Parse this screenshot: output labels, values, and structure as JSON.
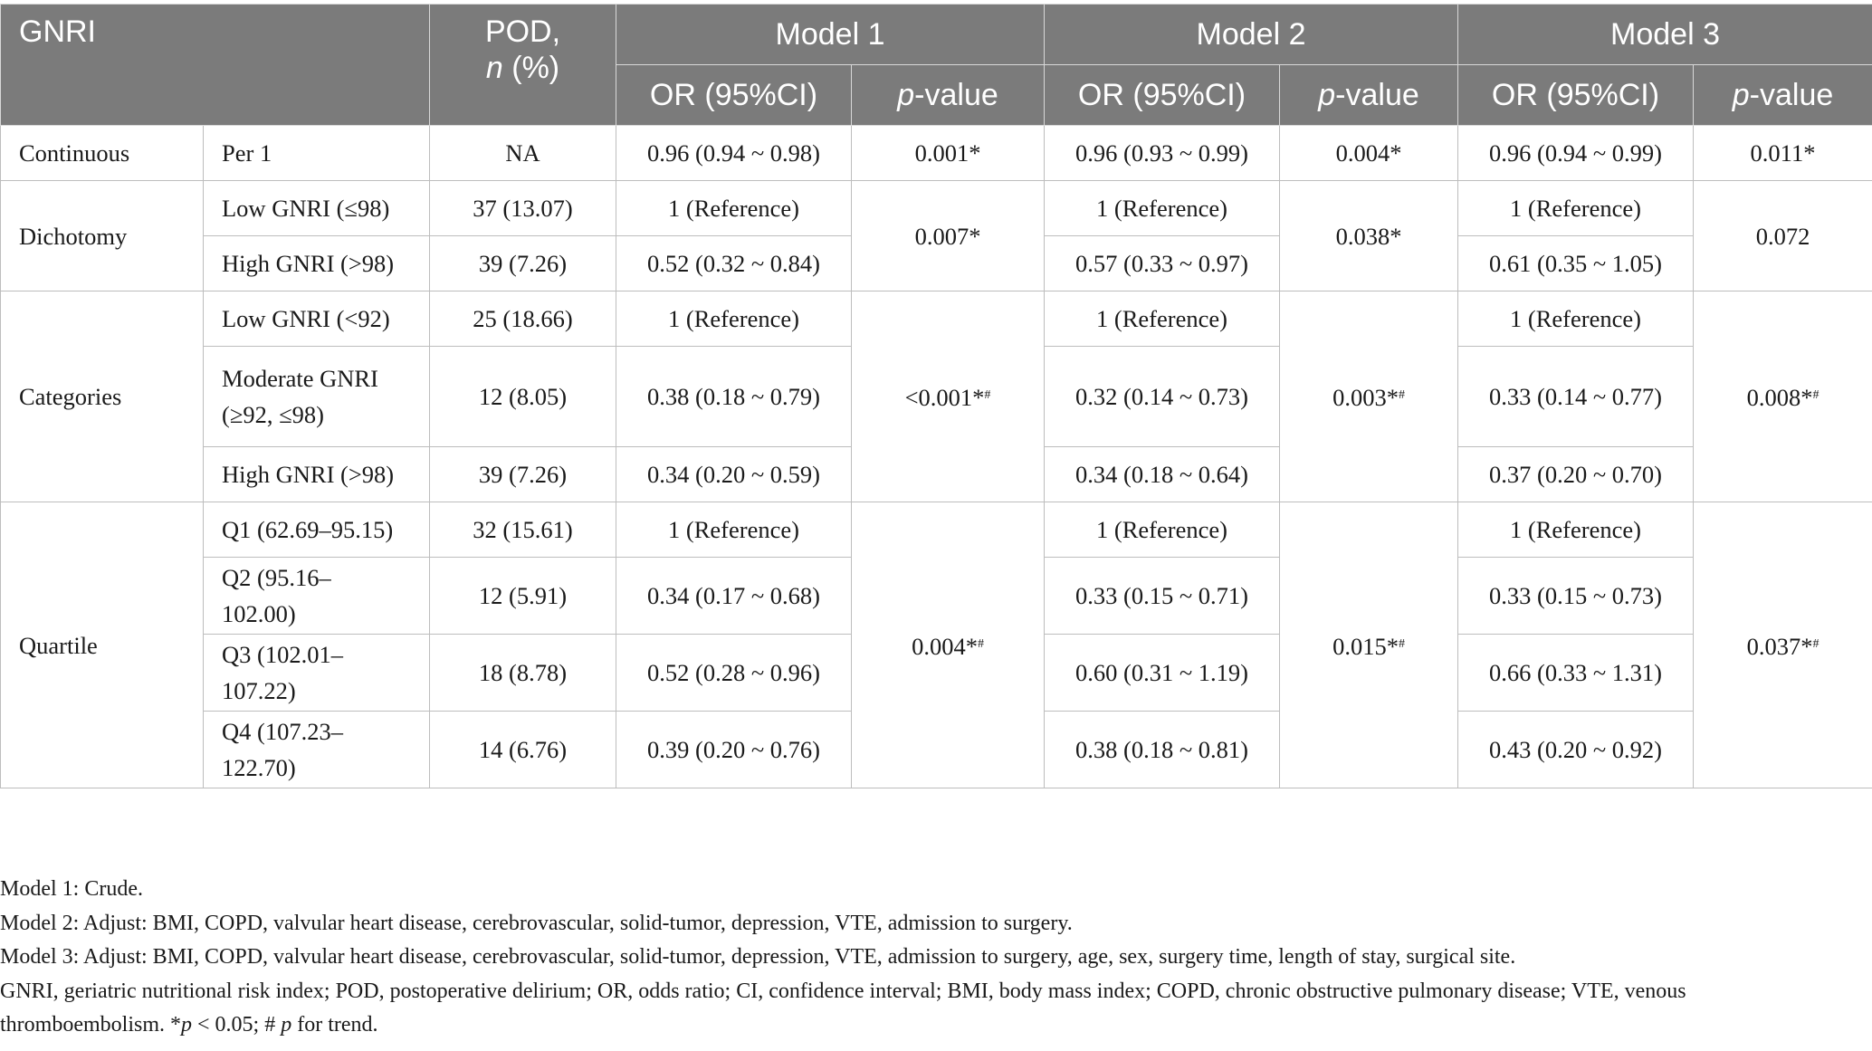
{
  "header": {
    "gnri": "GNRI",
    "pod_line1": "POD,",
    "pod_n": "n",
    "pod_pct": " (%)",
    "model1": "Model 1",
    "model2": "Model 2",
    "model3": "Model 3",
    "or_ci": "OR (95%CI)",
    "p_letter": "p",
    "p_suffix": "-value"
  },
  "rows": {
    "continuous": {
      "group": "Continuous",
      "label": "Per 1",
      "pod": "NA",
      "m1_or": "0.96 (0.94 ~ 0.98)",
      "m1_p": "0.001*",
      "m2_or": "0.96 (0.93 ~ 0.99)",
      "m2_p": "0.004*",
      "m3_or": "0.96 (0.94 ~ 0.99)",
      "m3_p": "0.011*"
    },
    "dichotomy": {
      "group": "Dichotomy",
      "m1_p": "0.007*",
      "m2_p": "0.038*",
      "m3_p": "0.072",
      "items": [
        {
          "label": "Low GNRI (≤98)",
          "pod": "37 (13.07)",
          "m1_or": "1 (Reference)",
          "m2_or": "1 (Reference)",
          "m3_or": "1 (Reference)"
        },
        {
          "label": "High GNRI (>98)",
          "pod": "39 (7.26)",
          "m1_or": "0.52 (0.32 ~ 0.84)",
          "m2_or": "0.57 (0.33 ~ 0.97)",
          "m3_or": "0.61 (0.35 ~ 1.05)"
        }
      ]
    },
    "categories": {
      "group": "Categories",
      "m1_p": "<0.001*",
      "m2_p": "0.003*",
      "m3_p": "0.008*",
      "trend_mark": "#",
      "items": [
        {
          "label": "Low GNRI (<92)",
          "pod": "25 (18.66)",
          "m1_or": "1 (Reference)",
          "m2_or": "1 (Reference)",
          "m3_or": "1 (Reference)"
        },
        {
          "label_line1": "Moderate GNRI",
          "label_line2": "(≥92, ≤98)",
          "pod": "12 (8.05)",
          "m1_or": "0.38 (0.18 ~ 0.79)",
          "m2_or": "0.32 (0.14 ~ 0.73)",
          "m3_or": "0.33 (0.14 ~ 0.77)"
        },
        {
          "label": "High GNRI (>98)",
          "pod": "39 (7.26)",
          "m1_or": "0.34 (0.20 ~ 0.59)",
          "m2_or": "0.34 (0.18 ~ 0.64)",
          "m3_or": "0.37 (0.20 ~ 0.70)"
        }
      ]
    },
    "quartile": {
      "group": "Quartile",
      "m1_p": "0.004*",
      "m2_p": "0.015*",
      "m3_p": "0.037*",
      "trend_mark": "#",
      "items": [
        {
          "label": "Q1 (62.69–95.15)",
          "pod": "32 (15.61)",
          "m1_or": "1 (Reference)",
          "m2_or": "1 (Reference)",
          "m3_or": "1 (Reference)"
        },
        {
          "label_line1": "Q2 (95.16–",
          "label_line2": "102.00)",
          "pod": "12 (5.91)",
          "m1_or": "0.34 (0.17 ~ 0.68)",
          "m2_or": "0.33 (0.15 ~ 0.71)",
          "m3_or": "0.33 (0.15 ~ 0.73)"
        },
        {
          "label_line1": "Q3 (102.01–",
          "label_line2": "107.22)",
          "pod": "18 (8.78)",
          "m1_or": "0.52 (0.28 ~ 0.96)",
          "m2_or": "0.60 (0.31 ~ 1.19)",
          "m3_or": "0.66 (0.33 ~ 1.31)"
        },
        {
          "label_line1": "Q4 (107.23–",
          "label_line2": "122.70)",
          "pod": "14 (6.76)",
          "m1_or": "0.39 (0.20 ~ 0.76)",
          "m2_or": "0.38 (0.18 ~ 0.81)",
          "m3_or": "0.43 (0.20 ~ 0.92)"
        }
      ]
    }
  },
  "notes": {
    "model1": "Model 1: Crude.",
    "model2": "Model 2: Adjust: BMI, COPD, valvular heart disease, cerebrovascular, solid-tumor, depression, VTE, admission to surgery.",
    "model3": "Model 3: Adjust: BMI, COPD, valvular heart disease, cerebrovascular, solid-tumor, depression, VTE, admission to surgery, age, sex, surgery time, length of stay, surgical site.",
    "abbrev_text": "GNRI, geriatric nutritional risk index; POD, postoperative delirium; OR, odds ratio; CI, confidence interval; BMI, body mass index; COPD, chronic obstructive pulmonary disease; VTE, venous thromboembolism. *",
    "abbrev_p1": "p",
    "abbrev_mid": " < 0.05; # ",
    "abbrev_p2": "p",
    "abbrev_end": " for trend."
  }
}
